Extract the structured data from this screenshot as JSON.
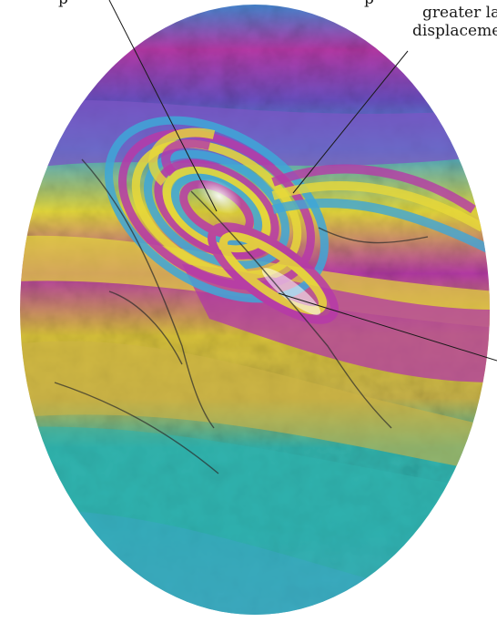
{
  "figure": {
    "type": "interferogram",
    "description_colors": [
      "#c23aa6",
      "#3fa7d8",
      "#e8d93a",
      "#2fb6a8",
      "#8a5fc0",
      "#d6a43a"
    ]
  },
  "labels": {
    "top_left_fragment": "p",
    "top_right_fragment": "p",
    "right_line1": "greater la",
    "right_line2": "displaceme"
  }
}
